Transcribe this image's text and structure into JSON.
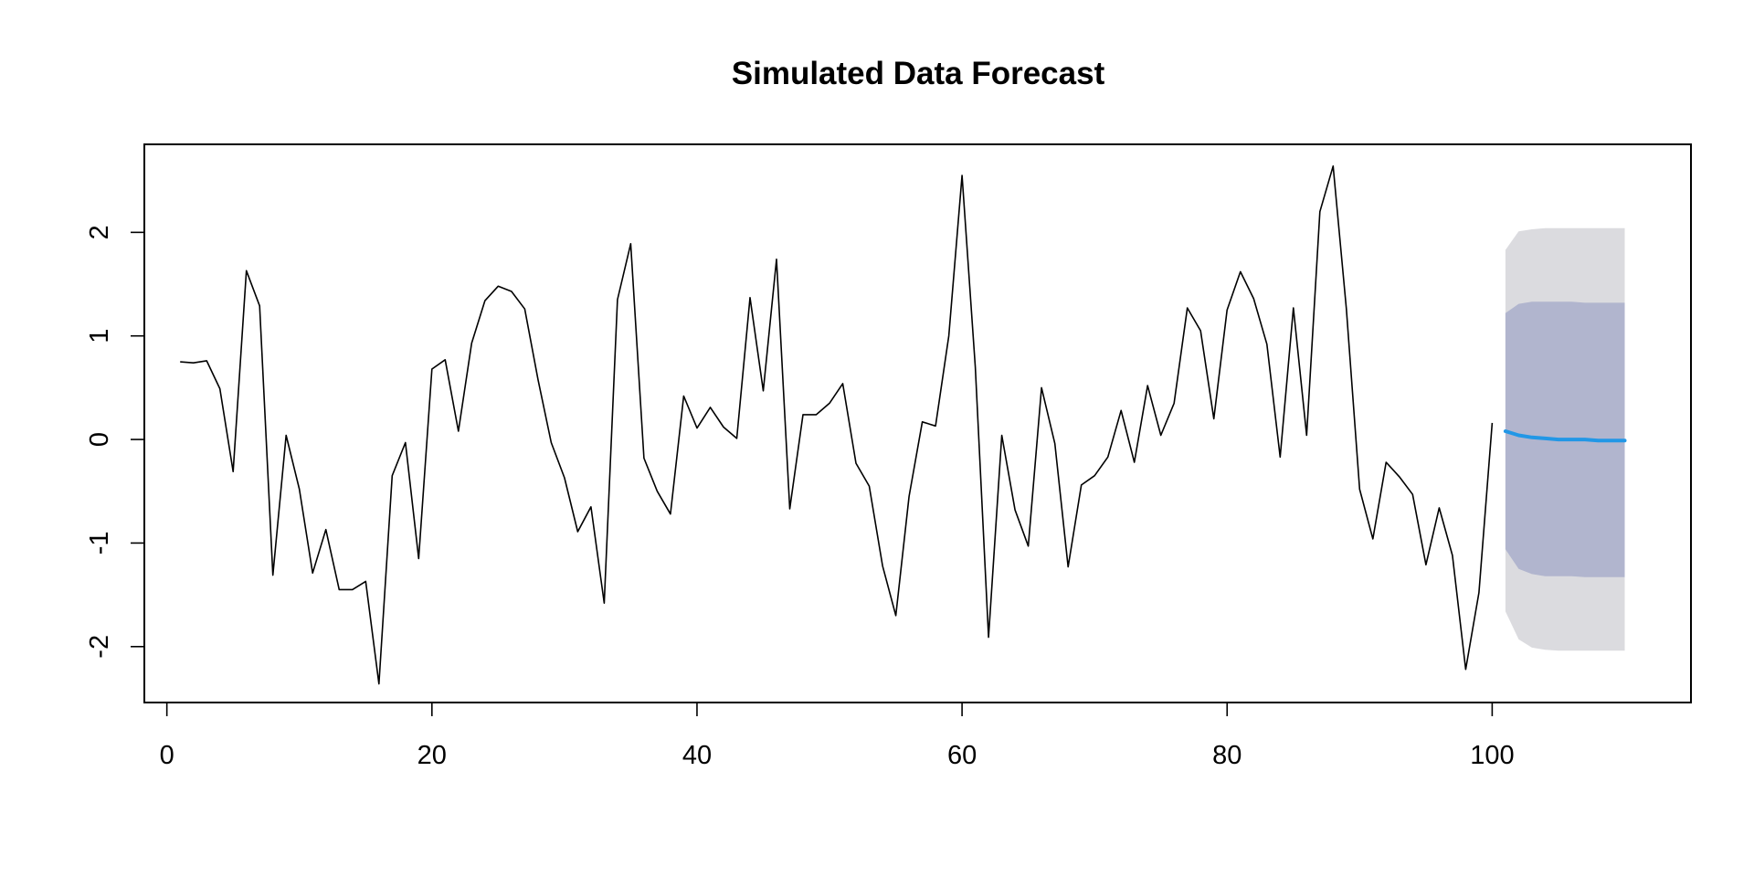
{
  "chart_data": {
    "type": "line",
    "title": "Simulated Data Forecast",
    "xlabel": "",
    "ylabel": "",
    "xlim": [
      -1.7,
      115.0
    ],
    "ylim": [
      -2.54,
      2.85
    ],
    "grid": false,
    "x_ticks": [
      0,
      20,
      40,
      60,
      80,
      100
    ],
    "y_ticks": [
      -2,
      -1,
      0,
      1,
      2
    ],
    "x_tick_labels": [
      "0",
      "20",
      "40",
      "60",
      "80",
      "100"
    ],
    "y_tick_labels": [
      "-2",
      "-1",
      "0",
      "1",
      "2"
    ],
    "history": {
      "x_start": 1,
      "values": [
        0.75,
        0.74,
        0.76,
        0.49,
        -0.31,
        1.63,
        1.29,
        -1.31,
        0.04,
        -0.48,
        -1.29,
        -0.87,
        -1.45,
        -1.45,
        -1.37,
        -2.36,
        -0.35,
        -0.03,
        -1.15,
        0.68,
        0.77,
        0.08,
        0.93,
        1.34,
        1.48,
        1.43,
        1.26,
        0.58,
        -0.03,
        -0.37,
        -0.89,
        -0.65,
        -1.58,
        1.35,
        1.89,
        -0.18,
        -0.5,
        -0.72,
        0.42,
        0.11,
        0.31,
        0.12,
        0.01,
        1.37,
        0.47,
        1.74,
        -0.67,
        0.24,
        0.24,
        0.35,
        0.54,
        -0.23,
        -0.45,
        -1.22,
        -1.7,
        -0.55,
        0.17,
        0.13,
        1.0,
        2.55,
        0.7,
        -1.91,
        0.04,
        -0.68,
        -1.03,
        0.5,
        -0.04,
        -1.23,
        -0.44,
        -0.35,
        -0.17,
        0.28,
        -0.22,
        0.52,
        0.04,
        0.35,
        1.27,
        1.05,
        0.2,
        1.25,
        1.62,
        1.36,
        0.92,
        -0.17,
        1.27,
        0.04,
        2.2,
        2.64,
        1.26,
        -0.48,
        -0.96,
        -0.22,
        -0.36,
        -0.53,
        -1.21,
        -0.66,
        -1.12,
        -2.22,
        -1.48,
        0.16
      ]
    },
    "forecast": {
      "x_start": 101,
      "mean": [
        0.08,
        0.04,
        0.02,
        0.01,
        0.0,
        0.0,
        0.0,
        -0.01,
        -0.01,
        -0.01
      ],
      "lower_80": [
        -1.06,
        -1.25,
        -1.3,
        -1.32,
        -1.32,
        -1.32,
        -1.33,
        -1.33,
        -1.33,
        -1.33
      ],
      "upper_80": [
        1.22,
        1.31,
        1.33,
        1.33,
        1.33,
        1.33,
        1.32,
        1.32,
        1.32,
        1.32
      ],
      "lower_95": [
        -1.66,
        -1.93,
        -2.01,
        -2.03,
        -2.04,
        -2.04,
        -2.04,
        -2.04,
        -2.04,
        -2.04
      ],
      "upper_95": [
        1.83,
        2.01,
        2.03,
        2.04,
        2.04,
        2.04,
        2.04,
        2.04,
        2.04,
        2.04
      ]
    },
    "colors": {
      "history_line": "#000000",
      "forecast_line": "#2297E6",
      "band_80": "#B1B5CE",
      "band_95": "#DBDBDF",
      "axis": "#000000"
    }
  }
}
